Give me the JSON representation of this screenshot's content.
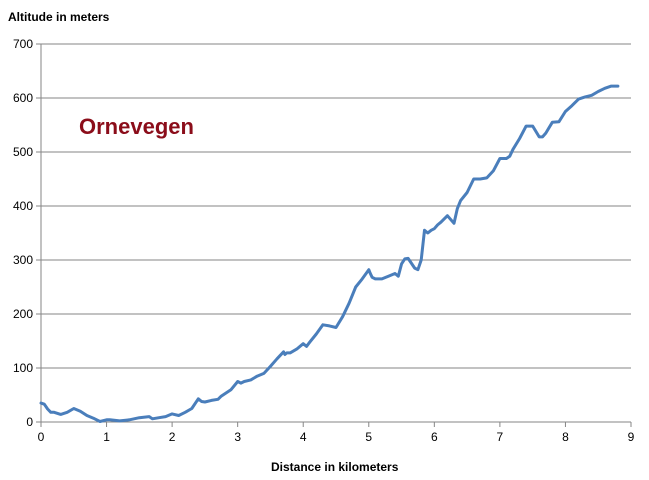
{
  "chart_data": {
    "type": "line",
    "title": "Ornevegen",
    "xlabel": "Distance in kilometers",
    "ylabel": "Altitude in meters",
    "xlim": [
      0,
      9
    ],
    "ylim": [
      0,
      700
    ],
    "xticks": [
      0,
      1,
      2,
      3,
      4,
      5,
      6,
      7,
      8,
      9
    ],
    "yticks": [
      0,
      100,
      200,
      300,
      400,
      500,
      600,
      700
    ],
    "grid": "horizontal",
    "legend": "none",
    "colors": {
      "line": "#4a7ebb",
      "title": "#8b0d1a",
      "grid": "#868686",
      "axis": "#868686"
    },
    "series": [
      {
        "x": [
          0,
          0.05,
          0.1,
          0.15,
          0.2,
          0.3,
          0.4,
          0.5,
          0.6,
          0.7,
          0.8,
          0.9,
          1.0,
          1.05,
          1.2,
          1.35,
          1.5,
          1.65,
          1.7,
          1.8,
          1.9,
          2.0,
          2.1,
          2.2,
          2.3,
          2.4,
          2.45,
          2.5,
          2.6,
          2.7,
          2.75,
          2.9,
          3.0,
          3.05,
          3.1,
          3.2,
          3.3,
          3.4,
          3.5,
          3.6,
          3.7,
          3.72,
          3.75,
          3.8,
          3.9,
          4.0,
          4.05,
          4.1,
          4.2,
          4.3,
          4.4,
          4.5,
          4.6,
          4.7,
          4.8,
          4.9,
          5.0,
          5.02,
          5.05,
          5.1,
          5.15,
          5.2,
          5.3,
          5.4,
          5.45,
          5.5,
          5.55,
          5.6,
          5.7,
          5.75,
          5.8,
          5.85,
          5.9,
          5.95,
          6.0,
          6.05,
          6.1,
          6.2,
          6.3,
          6.35,
          6.4,
          6.5,
          6.6,
          6.7,
          6.8,
          6.9,
          7.0,
          7.1,
          7.15,
          7.2,
          7.3,
          7.4,
          7.5,
          7.6,
          7.65,
          7.7,
          7.8,
          7.9,
          8.0,
          8.1,
          8.2,
          8.3,
          8.4,
          8.5,
          8.6,
          8.7,
          8.8
        ],
        "values": [
          35,
          33,
          24,
          18,
          18,
          14,
          18,
          25,
          20,
          12,
          7,
          1,
          4,
          4,
          2,
          4,
          8,
          10,
          6,
          8,
          10,
          15,
          12,
          18,
          25,
          43,
          38,
          37,
          40,
          42,
          48,
          60,
          75,
          72,
          75,
          78,
          85,
          90,
          103,
          117,
          130,
          125,
          128,
          128,
          135,
          145,
          140,
          148,
          163,
          180,
          178,
          175,
          195,
          220,
          250,
          265,
          282,
          276,
          268,
          265,
          265,
          265,
          270,
          275,
          270,
          293,
          302,
          303,
          285,
          282,
          300,
          355,
          350,
          355,
          358,
          365,
          370,
          382,
          368,
          395,
          410,
          425,
          450,
          450,
          452,
          465,
          488,
          488,
          492,
          505,
          525,
          548,
          548,
          528,
          528,
          535,
          555,
          556,
          575,
          586,
          598,
          602,
          605,
          612,
          618,
          622,
          622
        ]
      }
    ]
  }
}
